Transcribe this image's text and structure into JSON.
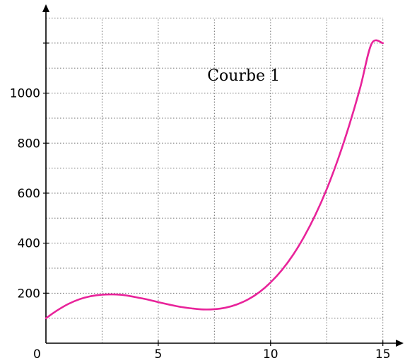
{
  "chart_data": {
    "type": "line",
    "title": "",
    "xlabel": "",
    "ylabel": "",
    "xlim": [
      0,
      15.6
    ],
    "ylim": [
      0,
      1300
    ],
    "x_ticks": [
      5,
      10,
      15
    ],
    "y_ticks": [
      200,
      400,
      600,
      800,
      1000
    ],
    "origin_label": "0",
    "grid": true,
    "grid_x_step": 2.5,
    "grid_y_step": 100,
    "annotations": [
      {
        "text": "Courbe 1",
        "x": 8.8,
        "y": 1050
      }
    ],
    "series": [
      {
        "color": "#e8239a",
        "x": [
          0,
          0.5,
          1,
          1.5,
          2,
          2.5,
          3,
          3.5,
          4,
          4.5,
          5,
          5.5,
          6,
          6.5,
          7,
          7.5,
          8,
          8.5,
          9,
          9.5,
          10,
          10.5,
          11,
          11.5,
          12,
          12.5,
          13,
          13.5,
          14,
          14.5,
          15
        ],
        "y": [
          100,
          131,
          157,
          176,
          188,
          194,
          195,
          192,
          184,
          175,
          164,
          154,
          145,
          139,
          135,
          136,
          142,
          155,
          175,
          204,
          243,
          292,
          353,
          427,
          514,
          616,
          735,
          871,
          1025,
          1198,
          1200
        ]
      }
    ]
  }
}
